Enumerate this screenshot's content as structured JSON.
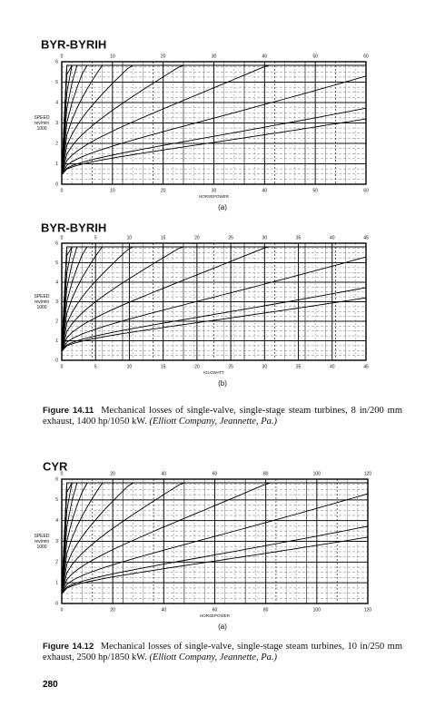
{
  "charts": [
    {
      "title": "BYR-BYRIH",
      "xticks": [
        0,
        10,
        20,
        30,
        40,
        50,
        60
      ],
      "yticks": [
        0,
        1,
        2,
        3,
        4,
        5,
        6
      ],
      "x_label": "HORSEPOWER",
      "y_label": [
        "SPEED",
        "rev/min",
        "1000"
      ],
      "panel": "(a)"
    },
    {
      "title": "BYR-BYRIH",
      "xticks": [
        0,
        5,
        10,
        15,
        20,
        25,
        30,
        35,
        40,
        45
      ],
      "yticks": [
        0,
        1,
        2,
        3,
        4,
        5,
        6
      ],
      "x_label": "KILOWATT",
      "y_label": [
        "SPEED",
        "rev/min",
        "1000"
      ],
      "panel": "(b)"
    },
    {
      "title": "CYR",
      "xticks": [
        0,
        20,
        40,
        60,
        80,
        100,
        120
      ],
      "yticks": [
        0,
        1,
        2,
        3,
        4,
        5,
        6
      ],
      "x_label": "HORSEPOWER",
      "y_label": [
        "SPEED",
        "rev/min",
        "1000"
      ],
      "panel": "(a)"
    }
  ],
  "captions": [
    {
      "label": "Figure 14.11",
      "text": "Mechanical losses of single-valve, single-stage steam turbines, 8 in/200 mm exhaust, 1400 hp/1050 kW.",
      "source": "(Elliott Company, Jeannette, Pa.)"
    },
    {
      "label": "Figure 14.12",
      "text": "Mechanical losses of single-valve, single-stage steam turbines, 10 in/250 mm exhaust, 2500 hp/1850 kW.",
      "source": "(Elliott Company, Jeannette, Pa.)"
    }
  ],
  "page_number": "280"
}
